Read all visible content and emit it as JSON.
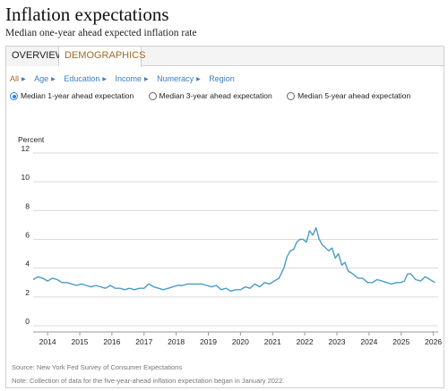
{
  "page": {
    "title": "Inflation expectations",
    "subtitle": "Median one-year ahead expected inflation rate"
  },
  "tabs": [
    {
      "label": "OVERVIEW",
      "active": false
    },
    {
      "label": "DEMOGRAPHICS",
      "active": true
    }
  ],
  "filters": [
    {
      "label": "All",
      "active": true
    },
    {
      "label": "Age",
      "active": false
    },
    {
      "label": "Education",
      "active": false
    },
    {
      "label": "Income",
      "active": false
    },
    {
      "label": "Numeracy",
      "active": false
    },
    {
      "label": "Region",
      "active": false
    }
  ],
  "radios": [
    {
      "label": "Median 1-year ahead expectation",
      "checked": true
    },
    {
      "label": "Median 3-year ahead expectation",
      "checked": false
    },
    {
      "label": "Median 5-year ahead expectation",
      "checked": false
    }
  ],
  "colors": {
    "line": "#4a9cc6",
    "active_filter": "#9c6b27",
    "link": "#3b7cc0",
    "radio_checked": "#2a7de1"
  },
  "chart_data": {
    "type": "line",
    "ylabel": "Percent",
    "ylim": [
      0,
      12
    ],
    "yticks": [
      0,
      2,
      4,
      6,
      8,
      10,
      12
    ],
    "xlim": [
      2013.55,
      2026.15
    ],
    "xticks": [
      "2014",
      "2015",
      "2016",
      "2017",
      "2018",
      "2019",
      "2020",
      "2021",
      "2022",
      "2023",
      "2024",
      "2025",
      "2026"
    ],
    "grid": "horizontal",
    "series": [
      {
        "name": "",
        "x": [
          2013.55,
          2013.7,
          2013.85,
          2014.0,
          2014.15,
          2014.3,
          2014.45,
          2014.6,
          2014.75,
          2014.9,
          2015.05,
          2015.2,
          2015.35,
          2015.5,
          2015.65,
          2015.8,
          2015.95,
          2016.1,
          2016.25,
          2016.4,
          2016.55,
          2016.7,
          2016.85,
          2017.0,
          2017.15,
          2017.3,
          2017.45,
          2017.6,
          2017.75,
          2017.9,
          2018.05,
          2018.2,
          2018.35,
          2018.5,
          2018.65,
          2018.8,
          2018.95,
          2019.1,
          2019.25,
          2019.4,
          2019.55,
          2019.7,
          2019.85,
          2020.0,
          2020.15,
          2020.3,
          2020.45,
          2020.6,
          2020.75,
          2020.9,
          2021.05,
          2021.2,
          2021.35,
          2021.45,
          2021.55,
          2021.65,
          2021.75,
          2021.85,
          2021.95,
          2022.05,
          2022.15,
          2022.25,
          2022.35,
          2022.45,
          2022.55,
          2022.65,
          2022.75,
          2022.85,
          2022.95,
          2023.05,
          2023.15,
          2023.25,
          2023.35,
          2023.5,
          2023.65,
          2023.8,
          2023.95,
          2024.1,
          2024.25,
          2024.4,
          2024.55,
          2024.7,
          2024.85,
          2025.0,
          2025.1,
          2025.2,
          2025.3,
          2025.45,
          2025.6,
          2025.75,
          2025.9,
          2026.05
        ],
        "values": [
          3.2,
          3.4,
          3.3,
          3.1,
          3.3,
          3.2,
          3.0,
          3.0,
          2.9,
          2.8,
          2.9,
          2.8,
          2.7,
          2.8,
          2.7,
          2.6,
          2.8,
          2.6,
          2.6,
          2.5,
          2.6,
          2.5,
          2.6,
          2.6,
          2.9,
          2.7,
          2.6,
          2.5,
          2.6,
          2.7,
          2.8,
          2.8,
          2.9,
          2.9,
          2.9,
          2.9,
          2.8,
          2.7,
          2.8,
          2.5,
          2.6,
          2.4,
          2.5,
          2.5,
          2.7,
          2.6,
          2.9,
          2.7,
          3.0,
          2.9,
          3.1,
          3.3,
          4.0,
          4.8,
          5.2,
          5.3,
          5.8,
          6.0,
          6.0,
          5.8,
          6.6,
          6.3,
          6.8,
          6.0,
          5.6,
          5.4,
          5.2,
          5.4,
          4.7,
          5.0,
          4.2,
          4.4,
          3.8,
          3.6,
          3.3,
          3.3,
          3.0,
          3.0,
          3.2,
          3.1,
          3.0,
          2.9,
          3.0,
          3.0,
          3.1,
          3.6,
          3.6,
          3.2,
          3.1,
          3.4,
          3.2,
          3.0
        ]
      }
    ]
  },
  "footnotes": {
    "source": "Source: New York Fed Survey of Consumer Expectations",
    "note": "Note: Collection of data for the five-year-ahead inflation expectation began in January 2022."
  }
}
